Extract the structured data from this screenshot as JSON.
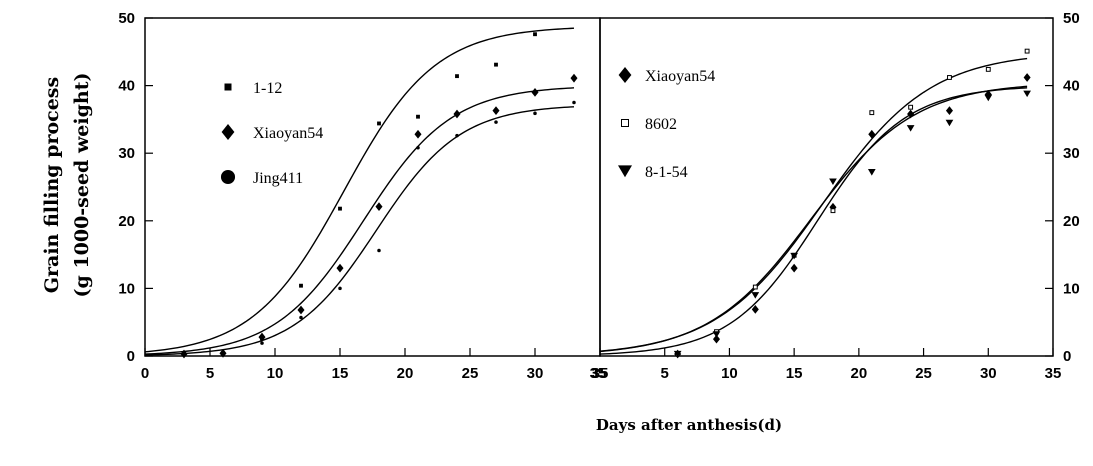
{
  "chart_data": [
    {
      "type": "scatter",
      "panel": "left",
      "x_ticks": [
        "0",
        "5",
        "10",
        "15",
        "20",
        "25",
        "30",
        "35"
      ],
      "y_ticks": [
        "0",
        "10",
        "20",
        "30",
        "40",
        "50"
      ],
      "xlim": [
        0,
        35
      ],
      "ylim": [
        0,
        50
      ],
      "y_axis_side": "left",
      "legend_placement": "top-left",
      "series": [
        {
          "name": "1-12",
          "marker": "square",
          "x": [
            3,
            6,
            9,
            12,
            15,
            18,
            21,
            24,
            27,
            30
          ],
          "y": [
            0.3,
            0.4,
            2.6,
            10.4,
            21.8,
            34.4,
            35.4,
            41.4,
            43.1,
            47.6
          ],
          "fit": {
            "A": 48.8,
            "k": 0.285,
            "t0": 15.3
          }
        },
        {
          "name": "Xiaoyan54",
          "marker": "diamond",
          "x": [
            3,
            6,
            9,
            12,
            15,
            18,
            21,
            24,
            27,
            30,
            33
          ],
          "y": [
            0.3,
            0.4,
            2.8,
            6.8,
            13.0,
            22.1,
            32.8,
            35.8,
            36.3,
            39.0,
            41.1
          ],
          "fit": {
            "A": 40.0,
            "k": 0.295,
            "t0": 16.8
          }
        },
        {
          "name": "Jing411",
          "marker": "circle",
          "x": [
            3,
            6,
            9,
            12,
            15,
            18,
            21,
            24,
            27,
            30,
            33
          ],
          "y": [
            0.3,
            0.3,
            1.9,
            5.7,
            10.0,
            15.6,
            30.8,
            32.6,
            34.6,
            35.9,
            37.5
          ],
          "fit": {
            "A": 37.2,
            "k": 0.31,
            "t0": 17.8
          }
        }
      ]
    },
    {
      "type": "scatter",
      "panel": "right",
      "x_ticks": [
        "5",
        "10",
        "15",
        "20",
        "25",
        "30",
        "35"
      ],
      "overlap_tick_label": "35",
      "y_ticks": [
        "0",
        "10",
        "20",
        "30",
        "40",
        "50"
      ],
      "xlim": [
        0,
        35
      ],
      "ylim": [
        0,
        50
      ],
      "y_axis_side": "right",
      "legend_placement": "top-left",
      "series": [
        {
          "name": "Xiaoyan54",
          "marker": "diamond",
          "x": [
            6,
            9,
            12,
            15,
            18,
            21,
            24,
            27,
            30,
            33
          ],
          "y": [
            0.3,
            2.5,
            6.9,
            13.0,
            22.0,
            32.8,
            35.8,
            36.3,
            38.7,
            41.2
          ],
          "fit": {
            "A": 40.0,
            "k": 0.295,
            "t0": 16.8
          }
        },
        {
          "name": "8602",
          "marker": "open-square",
          "x": [
            6,
            9,
            12,
            15,
            18,
            21,
            24,
            27,
            30,
            33
          ],
          "y": [
            0.3,
            3.6,
            10.2,
            14.9,
            21.5,
            36.0,
            36.8,
            41.2,
            42.4,
            45.1
          ],
          "fit": {
            "A": 45.0,
            "k": 0.24,
            "t0": 17.2
          }
        },
        {
          "name": "8-1-54",
          "marker": "triangle-down",
          "x": [
            6,
            9,
            12,
            15,
            18,
            21,
            24,
            27,
            30,
            33
          ],
          "y": [
            0.3,
            3.2,
            9.0,
            14.8,
            25.8,
            27.2,
            33.7,
            34.5,
            38.2,
            38.8
          ],
          "fit": {
            "A": 40.5,
            "k": 0.25,
            "t0": 16.3
          }
        }
      ]
    }
  ],
  "axes": {
    "y_label_line1": "Grain filling process",
    "y_label_line2": "(g 1000-seed weight)",
    "x_label": "Days after anthesis(d)"
  }
}
